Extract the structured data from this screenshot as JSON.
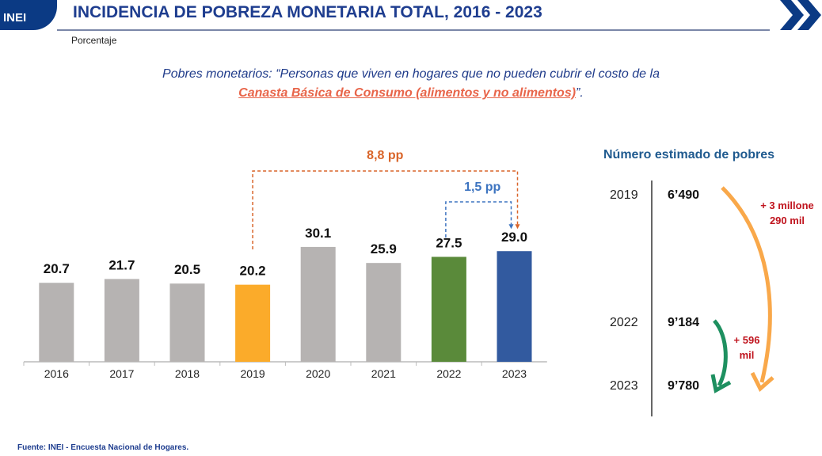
{
  "header": {
    "logo_text": "INEI",
    "title": "INCIDENCIA DE POBREZA MONETARIA TOTAL, 2016 - 2023",
    "subtitle": "Porcentaje"
  },
  "definition": {
    "line1": "Pobres monetarios: “Personas que viven en hogares que no pueden cubrir el costo de la",
    "highlight": "Canasta Básica de Consumo (alimentos y no alimentos)",
    "end": "”."
  },
  "chart_data": {
    "type": "bar",
    "categories": [
      "2016",
      "2017",
      "2018",
      "2019",
      "2020",
      "2021",
      "2022",
      "2023"
    ],
    "values": [
      20.7,
      21.7,
      20.5,
      20.2,
      30.1,
      25.9,
      27.5,
      29.0
    ],
    "value_labels": [
      "20.7",
      "21.7",
      "20.5",
      "20.2",
      "30.1",
      "25.9",
      "27.5",
      "29.0"
    ],
    "colors": [
      "#b6b3b2",
      "#b6b3b2",
      "#b6b3b2",
      "#fbab2a",
      "#b6b3b2",
      "#b6b3b2",
      "#5a8a3a",
      "#325a9f"
    ],
    "ylim": [
      0,
      32
    ],
    "grid": false,
    "annotations": [
      {
        "text": "8,8 pp",
        "from": "2019",
        "to": "2023",
        "color": "#d9652a"
      },
      {
        "text": "1,5 pp",
        "from": "2022",
        "to": "2023",
        "color": "#3d74c0"
      }
    ]
  },
  "right_panel": {
    "title": "Número estimado de pobres",
    "rows": [
      {
        "year": "2019",
        "value": "6’490"
      },
      {
        "year": "2022",
        "value": "9’184"
      },
      {
        "year": "2023",
        "value": "9’780"
      }
    ],
    "increase_long": [
      "+ 3 millone",
      "290 mil"
    ],
    "increase_short": [
      "+ 596",
      "mil"
    ]
  },
  "footer": {
    "source": "Fuente: INEI - Encuesta Nacional de Hogares."
  }
}
